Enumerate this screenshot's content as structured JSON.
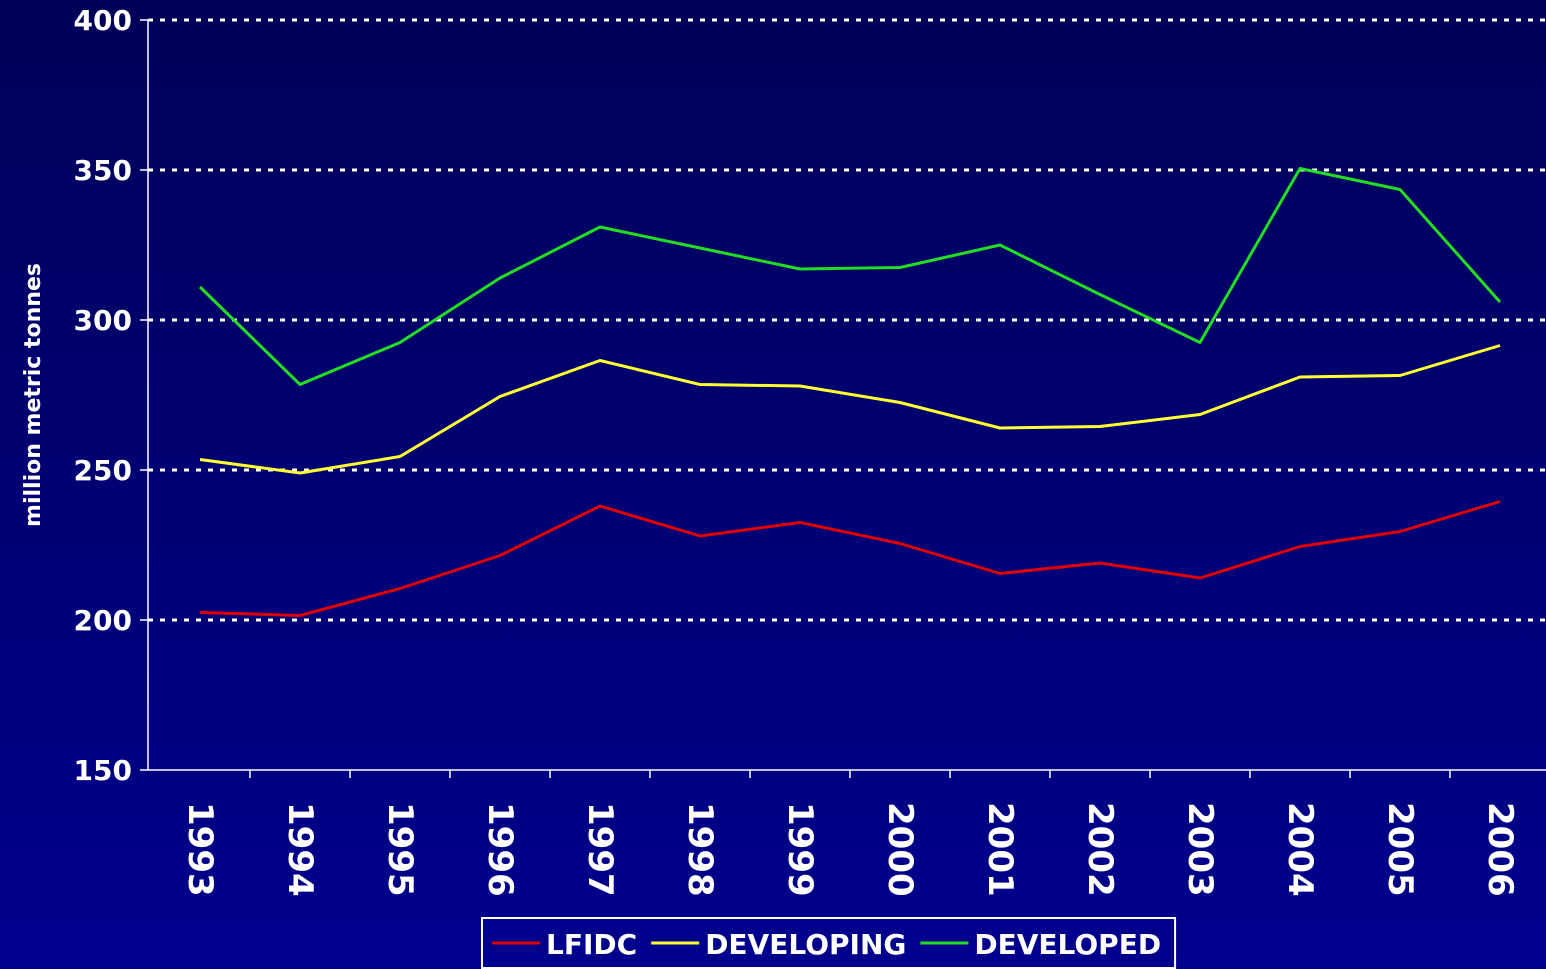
{
  "chart_data": {
    "type": "line",
    "y_label": "million metric tonnes",
    "categories": [
      "1993",
      "1994",
      "1995",
      "1996",
      "1997",
      "1998",
      "1999",
      "2000",
      "2001",
      "2002",
      "2003",
      "2004",
      "2005",
      "2006"
    ],
    "series": [
      {
        "name": "LFIDC",
        "color": "#e00000",
        "values": [
          202.5,
          201.5,
          210.5,
          221.5,
          238,
          228,
          232.5,
          225.5,
          215.5,
          219,
          214,
          224.5,
          229.5,
          239.5
        ]
      },
      {
        "name": "DEVELOPING",
        "color": "#ffff33",
        "values": [
          253.5,
          249,
          254.5,
          274.5,
          286.5,
          278.5,
          278,
          272.5,
          264,
          264.5,
          268.5,
          281,
          281.5,
          291.5
        ]
      },
      {
        "name": "DEVELOPED",
        "color": "#22dd22",
        "values": [
          311,
          278.5,
          292.5,
          314,
          331,
          324,
          317,
          317.5,
          325,
          308.5,
          292.5,
          350.5,
          343.5,
          306
        ]
      }
    ],
    "ylim": [
      150,
      400
    ],
    "yticks": [
      150,
      200,
      250,
      300,
      350,
      400
    ],
    "grid": true,
    "legend": "bottom"
  }
}
